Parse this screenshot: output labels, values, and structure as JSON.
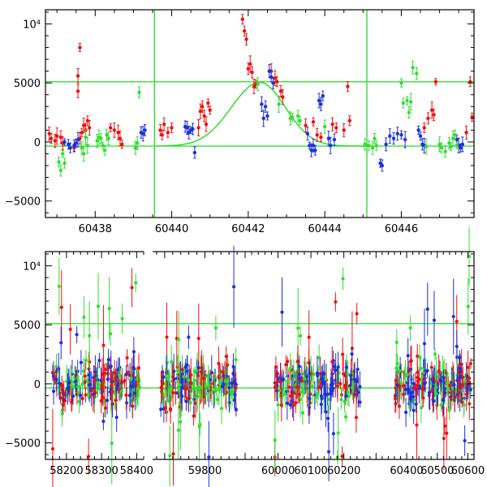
{
  "chart_data": [
    {
      "type": "scatter",
      "panel": "top",
      "title": "",
      "xlabel": "",
      "ylabel": "",
      "xlim": [
        60436.7,
        60447.9
      ],
      "ylim": [
        -6400,
        11200
      ],
      "grid": false,
      "x_ticks": [
        60438,
        60440,
        60442,
        60444,
        60446
      ],
      "x_tick_labels": [
        "60438",
        "60440",
        "60442",
        "60444",
        "60446"
      ],
      "y_ticks": [
        -5000,
        0,
        5000,
        10000
      ],
      "y_tick_labels": [
        "−5000",
        "0",
        "5000",
        "10⁴"
      ],
      "reference_lines": {
        "horizontal": [
          5100,
          -350
        ],
        "vertical": [
          60439.55,
          60445.1
        ]
      },
      "model_curve": {
        "color": "#22dd22",
        "peak_x": 60442.3,
        "peak_y": 5050,
        "baseline_y": -350,
        "x_range": [
          60439.6,
          60445.2
        ]
      },
      "series": [
        {
          "color": "#ee1111",
          "points": [
            [
              60436.8,
              700
            ],
            [
              60436.85,
              300
            ],
            [
              60436.95,
              100
            ],
            [
              60437.0,
              500
            ],
            [
              60437.1,
              400
            ],
            [
              60437.15,
              -100
            ],
            [
              60437.6,
              8000
            ],
            [
              60437.55,
              5600
            ],
            [
              60437.55,
              4300
            ],
            [
              60437.7,
              1400
            ],
            [
              60437.75,
              1000
            ],
            [
              60437.8,
              1800
            ],
            [
              60437.85,
              1200
            ],
            [
              60437.65,
              800
            ],
            [
              60437.6,
              300
            ],
            [
              60437.45,
              -500
            ],
            [
              60438.4,
              1200
            ],
            [
              60438.5,
              1000
            ],
            [
              60438.6,
              800
            ],
            [
              60438.65,
              300
            ],
            [
              60438.7,
              -200
            ],
            [
              60439.7,
              1000
            ],
            [
              60439.8,
              1500
            ],
            [
              60439.9,
              800
            ],
            [
              60440.0,
              1200
            ],
            [
              60439.75,
              600
            ],
            [
              60440.7,
              1200
            ],
            [
              60440.75,
              2600
            ],
            [
              60440.8,
              3000
            ],
            [
              60440.85,
              2200
            ],
            [
              60440.9,
              1500
            ],
            [
              60440.95,
              3300
            ],
            [
              60441.0,
              2700
            ],
            [
              60441.85,
              10400
            ],
            [
              60441.9,
              9400
            ],
            [
              60441.95,
              8700
            ],
            [
              60442.05,
              6600
            ],
            [
              60442.1,
              5900
            ],
            [
              60442.15,
              4700
            ],
            [
              60442.2,
              4900
            ],
            [
              60442.0,
              6200
            ],
            [
              60442.6,
              6000
            ],
            [
              60442.7,
              5400
            ],
            [
              60442.75,
              5100
            ],
            [
              60442.85,
              4300
            ],
            [
              60442.9,
              3800
            ],
            [
              60443.5,
              1400
            ],
            [
              60443.7,
              1700
            ],
            [
              60443.8,
              600
            ],
            [
              60443.9,
              400
            ],
            [
              60444.2,
              1500
            ],
            [
              60444.3,
              1200
            ],
            [
              60444.5,
              1000
            ],
            [
              60444.6,
              4700
            ],
            [
              60444.65,
              1800
            ],
            [
              60446.6,
              1200
            ],
            [
              60446.7,
              2000
            ],
            [
              60446.8,
              2700
            ],
            [
              60446.85,
              2300
            ],
            [
              60446.9,
              5100
            ],
            [
              60447.8,
              5100
            ],
            [
              60447.85,
              2100
            ],
            [
              60447.7,
              800
            ]
          ]
        },
        {
          "color": "#1f2fdd",
          "points": [
            [
              60437.2,
              0
            ],
            [
              60437.3,
              -200
            ],
            [
              60437.35,
              -500
            ],
            [
              60437.45,
              -300
            ],
            [
              60437.5,
              -100
            ],
            [
              60437.55,
              200
            ],
            [
              60439.2,
              800
            ],
            [
              60439.3,
              1000
            ],
            [
              60439.25,
              700
            ],
            [
              60440.4,
              1200
            ],
            [
              60440.45,
              800
            ],
            [
              60440.5,
              1000
            ],
            [
              60440.55,
              1100
            ],
            [
              60440.6,
              -900
            ],
            [
              60440.35,
              1300
            ],
            [
              60442.55,
              6000
            ],
            [
              60442.6,
              5500
            ],
            [
              60442.65,
              5000
            ],
            [
              60442.4,
              2000
            ],
            [
              60442.5,
              2200
            ],
            [
              60442.45,
              3000
            ],
            [
              60442.35,
              3200
            ],
            [
              60443.55,
              700
            ],
            [
              60443.6,
              -300
            ],
            [
              60443.65,
              -700
            ],
            [
              60443.7,
              -300
            ],
            [
              60443.75,
              -700
            ],
            [
              60443.85,
              3500
            ],
            [
              60443.9,
              3200
            ],
            [
              60443.95,
              3900
            ],
            [
              60444.1,
              300
            ],
            [
              60444.15,
              -300
            ],
            [
              60444.25,
              200
            ],
            [
              60445.45,
              -1800
            ],
            [
              60445.5,
              -2000
            ],
            [
              60445.6,
              -200
            ],
            [
              60445.7,
              500
            ],
            [
              60445.8,
              300
            ],
            [
              60445.9,
              700
            ],
            [
              60446.0,
              600
            ],
            [
              60446.1,
              200
            ],
            [
              60446.45,
              1000
            ],
            [
              60446.5,
              500
            ],
            [
              60446.55,
              -200
            ],
            [
              60446.6,
              -300
            ],
            [
              60447.45,
              200
            ],
            [
              60447.5,
              -300
            ],
            [
              60447.55,
              -500
            ],
            [
              60447.6,
              -200
            ]
          ]
        },
        {
          "color": "#33dd33",
          "points": [
            [
              60437.05,
              -1700
            ],
            [
              60437.1,
              -2400
            ],
            [
              60437.15,
              -1000
            ],
            [
              60437.2,
              -1800
            ],
            [
              60437.65,
              -500
            ],
            [
              60437.7,
              -1000
            ],
            [
              60437.75,
              400
            ],
            [
              60437.8,
              -300
            ],
            [
              60438.05,
              100
            ],
            [
              60438.1,
              400
            ],
            [
              60438.15,
              300
            ],
            [
              60438.2,
              -300
            ],
            [
              60438.25,
              -700
            ],
            [
              60438.3,
              600
            ],
            [
              60438.35,
              300
            ],
            [
              60439.05,
              -500
            ],
            [
              60439.1,
              -100
            ],
            [
              60439.15,
              4200
            ],
            [
              60442.25,
              4900
            ],
            [
              60442.8,
              3200
            ],
            [
              60443.1,
              2000
            ],
            [
              60443.15,
              2100
            ],
            [
              60443.3,
              2200
            ],
            [
              60443.35,
              1800
            ],
            [
              60444.0,
              1300
            ],
            [
              60445.05,
              -200
            ],
            [
              60445.15,
              -300
            ],
            [
              60445.25,
              -500
            ],
            [
              60445.3,
              300
            ],
            [
              60445.35,
              -300
            ],
            [
              60446.0,
              5000
            ],
            [
              60446.05,
              3300
            ],
            [
              60446.15,
              3500
            ],
            [
              60446.2,
              2500
            ],
            [
              60446.25,
              3400
            ],
            [
              60446.3,
              6300
            ],
            [
              60446.4,
              5800
            ],
            [
              60446.65,
              -400
            ],
            [
              60447.0,
              -200
            ],
            [
              60447.05,
              -500
            ],
            [
              60447.15,
              -800
            ],
            [
              60447.25,
              -100
            ],
            [
              60447.3,
              -400
            ],
            [
              60447.35,
              300
            ],
            [
              60447.4,
              600
            ],
            [
              60447.45,
              -300
            ]
          ]
        }
      ]
    },
    {
      "type": "scatter",
      "panel": "bottom",
      "title": "",
      "xlabel": "",
      "ylabel": "",
      "x_axis": "broken",
      "segments": [
        {
          "xlim": [
            58140,
            58420
          ],
          "x_ticks": [
            58200,
            58300,
            58400
          ],
          "x_tick_labels": [
            "58200",
            "58300",
            "58400"
          ],
          "data_range": [
            58160,
            58410
          ]
        },
        {
          "xlim": [
            59670,
            59900
          ],
          "x_ticks": [
            59800
          ],
          "x_tick_labels": [
            "59800"
          ],
          "data_range": [
            59690,
            59880
          ]
        },
        {
          "xlim": [
            59900,
            60270
          ],
          "x_ticks": [
            60000,
            60100,
            60200
          ],
          "x_tick_labels": [
            "60000",
            "60100",
            "60200"
          ],
          "data_range": [
            59990,
            60250
          ]
        },
        {
          "xlim": [
            60270,
            60620
          ],
          "x_ticks": [
            60400,
            60500,
            60600
          ],
          "x_tick_labels": [
            "60400",
            "60500",
            "60600"
          ],
          "data_range": [
            60360,
            60610
          ]
        }
      ],
      "ylim": [
        -6400,
        11200
      ],
      "grid": false,
      "y_ticks": [
        -5000,
        0,
        5000,
        10000
      ],
      "y_tick_labels": [
        "−5000",
        "0",
        "5000",
        "10⁴"
      ],
      "reference_lines": {
        "horizontal": [
          5100,
          -350
        ],
        "vertical": []
      },
      "series": [
        {
          "color": "#1f2fdd",
          "name": "",
          "points": []
        },
        {
          "color": "#ee1111",
          "name": "",
          "points": []
        },
        {
          "color": "#33dd33",
          "name": "",
          "points": []
        }
      ],
      "note": "dense noisy photometry"
    }
  ]
}
